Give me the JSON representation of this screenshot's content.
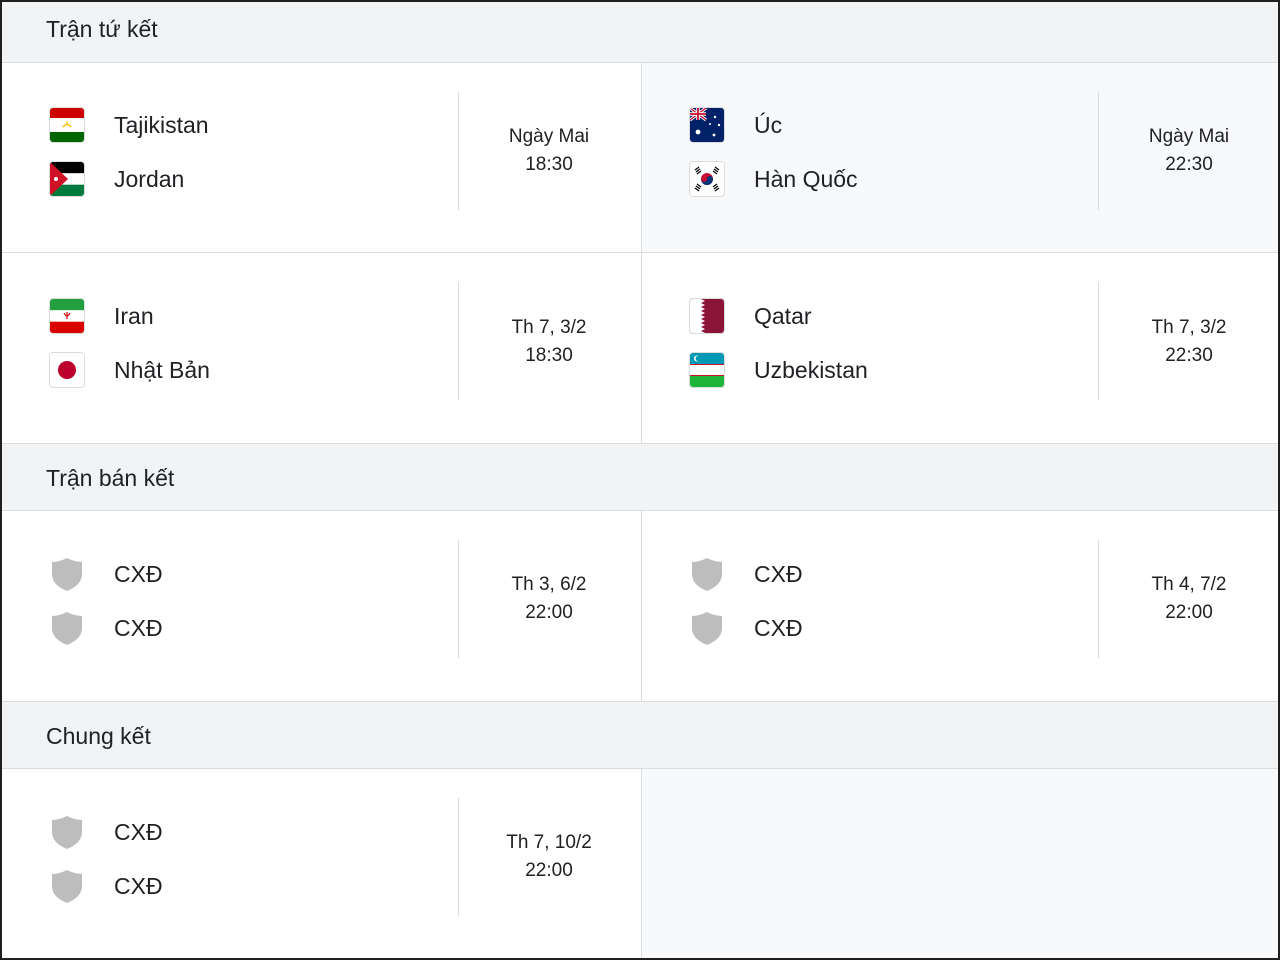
{
  "sections": [
    {
      "title": "Trận tứ kết",
      "matches": [
        {
          "home": {
            "name": "Tajikistan",
            "icon": "tajikistan-flag-icon"
          },
          "away": {
            "name": "Jordan",
            "icon": "jordan-flag-icon"
          },
          "date": "Ngày Mai",
          "time": "18:30"
        },
        {
          "home": {
            "name": "Úc",
            "icon": "australia-flag-icon"
          },
          "away": {
            "name": "Hàn Quốc",
            "icon": "south-korea-flag-icon"
          },
          "date": "Ngày Mai",
          "time": "22:30"
        },
        {
          "home": {
            "name": "Iran",
            "icon": "iran-flag-icon"
          },
          "away": {
            "name": "Nhật Bản",
            "icon": "japan-flag-icon"
          },
          "date": "Th 7, 3/2",
          "time": "18:30"
        },
        {
          "home": {
            "name": "Qatar",
            "icon": "qatar-flag-icon"
          },
          "away": {
            "name": "Uzbekistan",
            "icon": "uzbekistan-flag-icon"
          },
          "date": "Th 7, 3/2",
          "time": "22:30"
        }
      ]
    },
    {
      "title": "Trận bán kết",
      "matches": [
        {
          "home": {
            "name": "CXĐ",
            "icon": "shield-placeholder-icon"
          },
          "away": {
            "name": "CXĐ",
            "icon": "shield-placeholder-icon"
          },
          "date": "Th 3, 6/2",
          "time": "22:00"
        },
        {
          "home": {
            "name": "CXĐ",
            "icon": "shield-placeholder-icon"
          },
          "away": {
            "name": "CXĐ",
            "icon": "shield-placeholder-icon"
          },
          "date": "Th 4, 7/2",
          "time": "22:00"
        }
      ]
    },
    {
      "title": "Chung kết",
      "matches": [
        {
          "home": {
            "name": "CXĐ",
            "icon": "shield-placeholder-icon"
          },
          "away": {
            "name": "CXĐ",
            "icon": "shield-placeholder-icon"
          },
          "date": "Th 7, 10/2",
          "time": "22:00"
        }
      ]
    }
  ],
  "colors": {
    "header_bg": "#f1f3f4",
    "border": "#dadce0",
    "text": "#202124",
    "placeholder_shield": "#bdbdbd"
  }
}
